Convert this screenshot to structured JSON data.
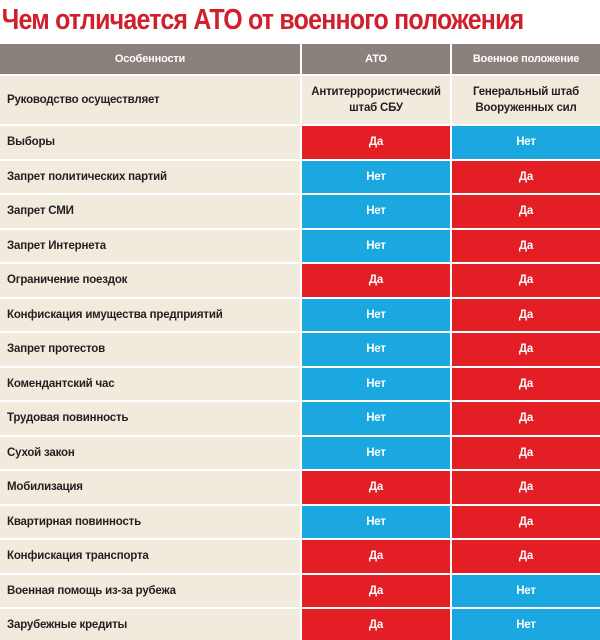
{
  "title": "Чем отличается АТО от военного положения",
  "colors": {
    "title": "#d0202e",
    "header_bg": "#8a817c",
    "feature_bg": "#f1ebdd",
    "yes": "#e31e24",
    "no": "#1ba8e0"
  },
  "table": {
    "headers": [
      "Особенности",
      "АТО",
      "Военное положение"
    ],
    "lead_row": {
      "feature": "Руководство осуществляет",
      "ato": "Антитеррористический штаб СБУ",
      "military": "Генеральный штаб Вооруженных сил"
    },
    "rows": [
      {
        "feature": "Выборы",
        "ato": "Да",
        "military": "Нет"
      },
      {
        "feature": "Запрет политических партий",
        "ato": "Нет",
        "military": "Да"
      },
      {
        "feature": "Запрет СМИ",
        "ato": "Нет",
        "military": "Да"
      },
      {
        "feature": "Запрет Интернета",
        "ato": "Нет",
        "military": "Да"
      },
      {
        "feature": "Ограничение поездок",
        "ato": "Да",
        "military": "Да"
      },
      {
        "feature": "Конфискация имущества предприятий",
        "ato": "Нет",
        "military": "Да"
      },
      {
        "feature": "Запрет протестов",
        "ato": "Нет",
        "military": "Да"
      },
      {
        "feature": "Комендантский час",
        "ato": "Нет",
        "military": "Да"
      },
      {
        "feature": "Трудовая повинность",
        "ato": "Нет",
        "military": "Да"
      },
      {
        "feature": "Сухой закон",
        "ato": "Нет",
        "military": "Да"
      },
      {
        "feature": "Мобилизация",
        "ato": "Да",
        "military": "Да"
      },
      {
        "feature": "Квартирная повинность",
        "ato": "Нет",
        "military": "Да"
      },
      {
        "feature": "Конфискация транспорта",
        "ato": "Да",
        "military": "Да"
      },
      {
        "feature": "Военная помощь из-за рубежа",
        "ato": "Да",
        "military": "Нет"
      },
      {
        "feature": "Зарубежные кредиты",
        "ato": "Да",
        "military": "Нет"
      }
    ]
  }
}
